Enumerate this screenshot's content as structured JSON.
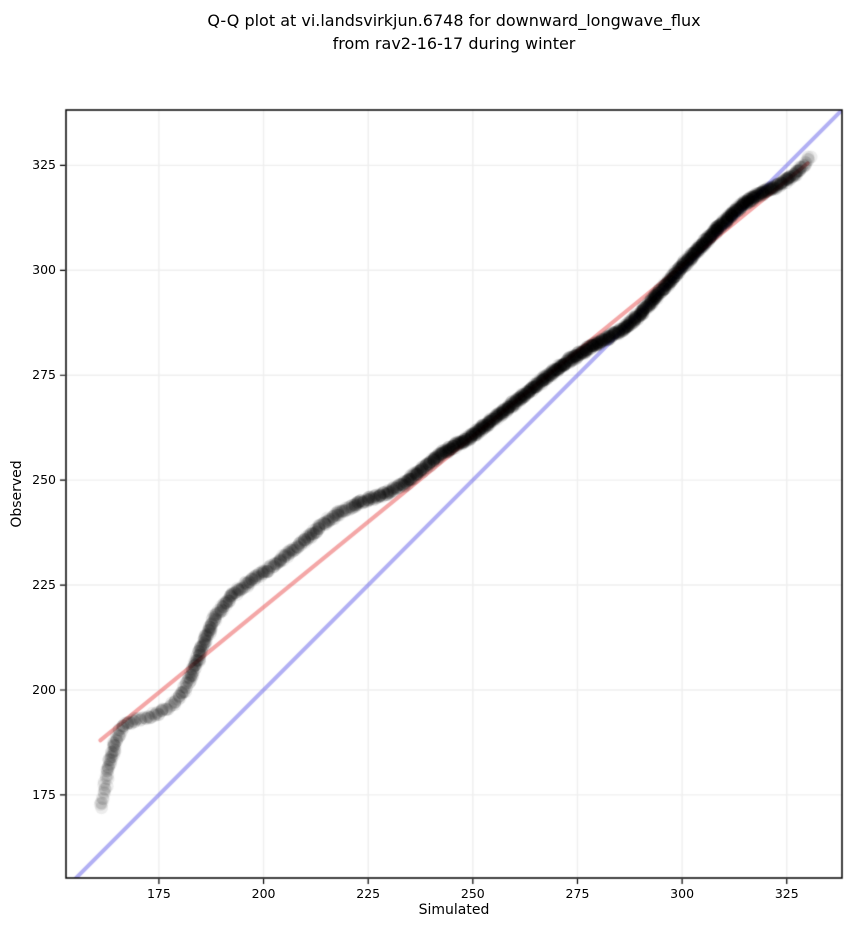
{
  "title": {
    "line1": "Q-Q plot at vi.landsvirkjun.6748 for downward_longwave_flux",
    "line2": "from rav2-16-17 during winter"
  },
  "chart_data": {
    "type": "scatter",
    "title": "Q-Q plot at vi.landsvirkjun.6748 for downward_longwave_flux\nfrom rav2-16-17 during winter",
    "xlabel": "Simulated",
    "ylabel": "Observed",
    "xlim": [
      152.8,
      338.2
    ],
    "ylim": [
      155.2,
      338.2
    ],
    "xticks": [
      175,
      200,
      225,
      250,
      275,
      300,
      325
    ],
    "yticks": [
      175,
      200,
      225,
      250,
      275,
      300,
      325
    ],
    "grid": true,
    "grid_color": "#efefef",
    "spine_color": "#000000",
    "identity_line": {
      "name": "identity-line-y-equals-x",
      "slope": 1,
      "intercept": 0,
      "color": "#5550e6",
      "alpha": 0.45,
      "width": 4
    },
    "fit_line": {
      "name": "qq-fit-line",
      "start": [
        161,
        188
      ],
      "end": [
        330,
        325.5
      ],
      "color": "#e63c3c",
      "alpha": 0.45,
      "width": 4
    },
    "point_style": {
      "radius": 6.5,
      "color": "#000000",
      "alpha": 0.07,
      "note": "translucent heavily-overplotted markers; third value of each qq_point is local overplot density"
    },
    "qq_points": [
      [
        161.3,
        172.0,
        1
      ],
      [
        161.8,
        175.0,
        1
      ],
      [
        162.3,
        178.0,
        1.2
      ],
      [
        162.9,
        181.0,
        1.5
      ],
      [
        163.6,
        184.0,
        1.7
      ],
      [
        164.4,
        186.8,
        1.8
      ],
      [
        165.3,
        189.2,
        2
      ],
      [
        166.4,
        191.0,
        2
      ],
      [
        168.0,
        192.2,
        2
      ],
      [
        170.0,
        193.0,
        2
      ],
      [
        172.0,
        193.6,
        2
      ],
      [
        174.0,
        194.2,
        2
      ],
      [
        176.0,
        195.0,
        2
      ],
      [
        178.0,
        196.2,
        2
      ],
      [
        179.7,
        197.8,
        2.2
      ],
      [
        181.0,
        200.0,
        2.4
      ],
      [
        182.2,
        202.4,
        2.5
      ],
      [
        183.3,
        204.9,
        2.5
      ],
      [
        184.4,
        207.6,
        2.5
      ],
      [
        185.5,
        210.4,
        2.5
      ],
      [
        186.6,
        213.2,
        2.5
      ],
      [
        187.8,
        215.9,
        2.6
      ],
      [
        189.2,
        218.4,
        2.8
      ],
      [
        190.8,
        220.6,
        3
      ],
      [
        192.6,
        222.5,
        3
      ],
      [
        194.5,
        224.2,
        3
      ],
      [
        196.6,
        225.8,
        3
      ],
      [
        198.8,
        227.2,
        3
      ],
      [
        201.0,
        228.7,
        3
      ],
      [
        203.2,
        230.3,
        3
      ],
      [
        205.4,
        232.0,
        3
      ],
      [
        207.6,
        233.8,
        3
      ],
      [
        209.8,
        235.6,
        3
      ],
      [
        212.0,
        237.6,
        3
      ],
      [
        214.2,
        239.5,
        3.2
      ],
      [
        216.5,
        241.2,
        3.2
      ],
      [
        219.0,
        242.7,
        3.4
      ],
      [
        221.5,
        243.9,
        3.5
      ],
      [
        224.0,
        245.0,
        3.6
      ],
      [
        226.5,
        245.9,
        3.8
      ],
      [
        229.0,
        246.8,
        4
      ],
      [
        231.5,
        247.9,
        4.2
      ],
      [
        234.0,
        249.4,
        4.5
      ],
      [
        236.5,
        251.4,
        4.8
      ],
      [
        239.0,
        253.5,
        5
      ],
      [
        241.5,
        255.5,
        5.5
      ],
      [
        244.0,
        257.2,
        6
      ],
      [
        246.5,
        258.7,
        6.5
      ],
      [
        249.0,
        260.0,
        6.5
      ],
      [
        252.0,
        262.2,
        6.5
      ],
      [
        255.0,
        264.5,
        6.5
      ],
      [
        258.0,
        266.9,
        6.5
      ],
      [
        261.0,
        269.3,
        6.5
      ],
      [
        264.0,
        271.7,
        6.5
      ],
      [
        267.0,
        274.1,
        6.5
      ],
      [
        270.0,
        276.4,
        7
      ],
      [
        273.0,
        278.5,
        7
      ],
      [
        276.0,
        280.4,
        7
      ],
      [
        279.0,
        282.2,
        7
      ],
      [
        282.0,
        283.9,
        7
      ],
      [
        284.0,
        285.0,
        7
      ],
      [
        286.0,
        285.9,
        7
      ],
      [
        289.0,
        288.6,
        7
      ],
      [
        292.0,
        291.8,
        7
      ],
      [
        295.0,
        295.2,
        7
      ],
      [
        298.0,
        298.6,
        7
      ],
      [
        301.0,
        302.0,
        7.5
      ],
      [
        304.0,
        305.2,
        7.5
      ],
      [
        307.0,
        308.4,
        8
      ],
      [
        310.0,
        311.4,
        8
      ],
      [
        312.5,
        313.9,
        8
      ],
      [
        315.0,
        316.0,
        8
      ],
      [
        317.0,
        317.3,
        8
      ],
      [
        319.0,
        318.4,
        7.5
      ],
      [
        321.0,
        319.3,
        7
      ],
      [
        323.0,
        320.3,
        6
      ],
      [
        325.0,
        321.5,
        5
      ],
      [
        327.0,
        323.0,
        4
      ],
      [
        328.5,
        324.5,
        3
      ],
      [
        329.7,
        325.8,
        2
      ],
      [
        330.8,
        327.0,
        1.2
      ]
    ]
  }
}
